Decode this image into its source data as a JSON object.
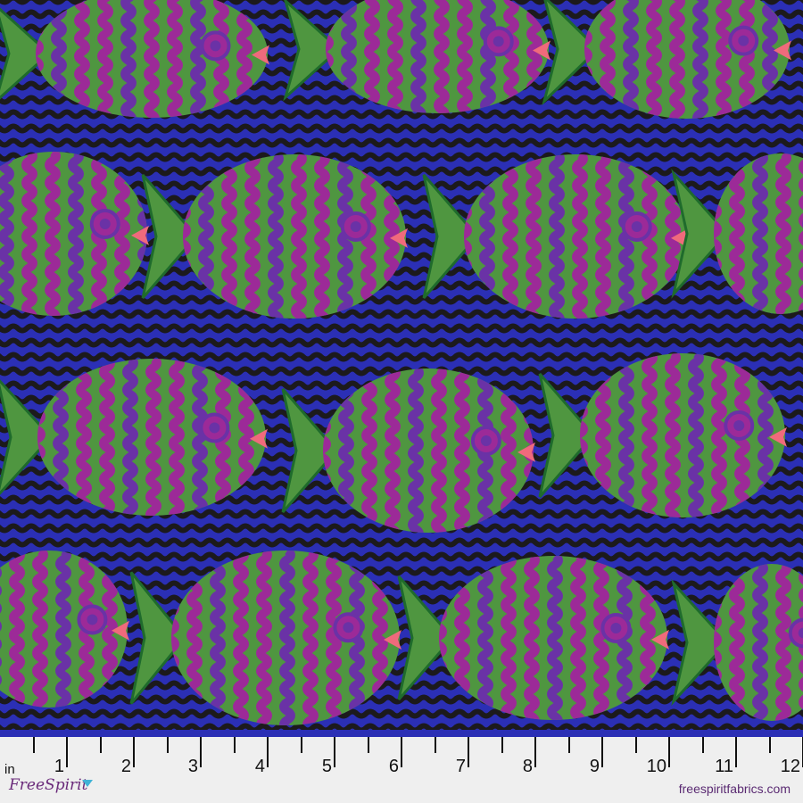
{
  "ruler": {
    "unit": "in",
    "labels": [
      "1",
      "2",
      "3",
      "4",
      "5",
      "6",
      "7",
      "8",
      "9",
      "10",
      "11",
      "12"
    ]
  },
  "branding": {
    "logo_text": "FreeSpirit",
    "website": "freespiritfabrics.com"
  },
  "colors": {
    "background_blue": "#2b2fb5",
    "wave_black": "#1c1a1c",
    "fish_green": "#4f9640",
    "fish_magenta": "#9c2a98",
    "fish_purple": "#6a32a6",
    "dark_green": "#1f6b2c",
    "lips_pink": "#f06a7c",
    "ruler_bg": "#efefef",
    "brand_purple": "#5a2a72"
  }
}
